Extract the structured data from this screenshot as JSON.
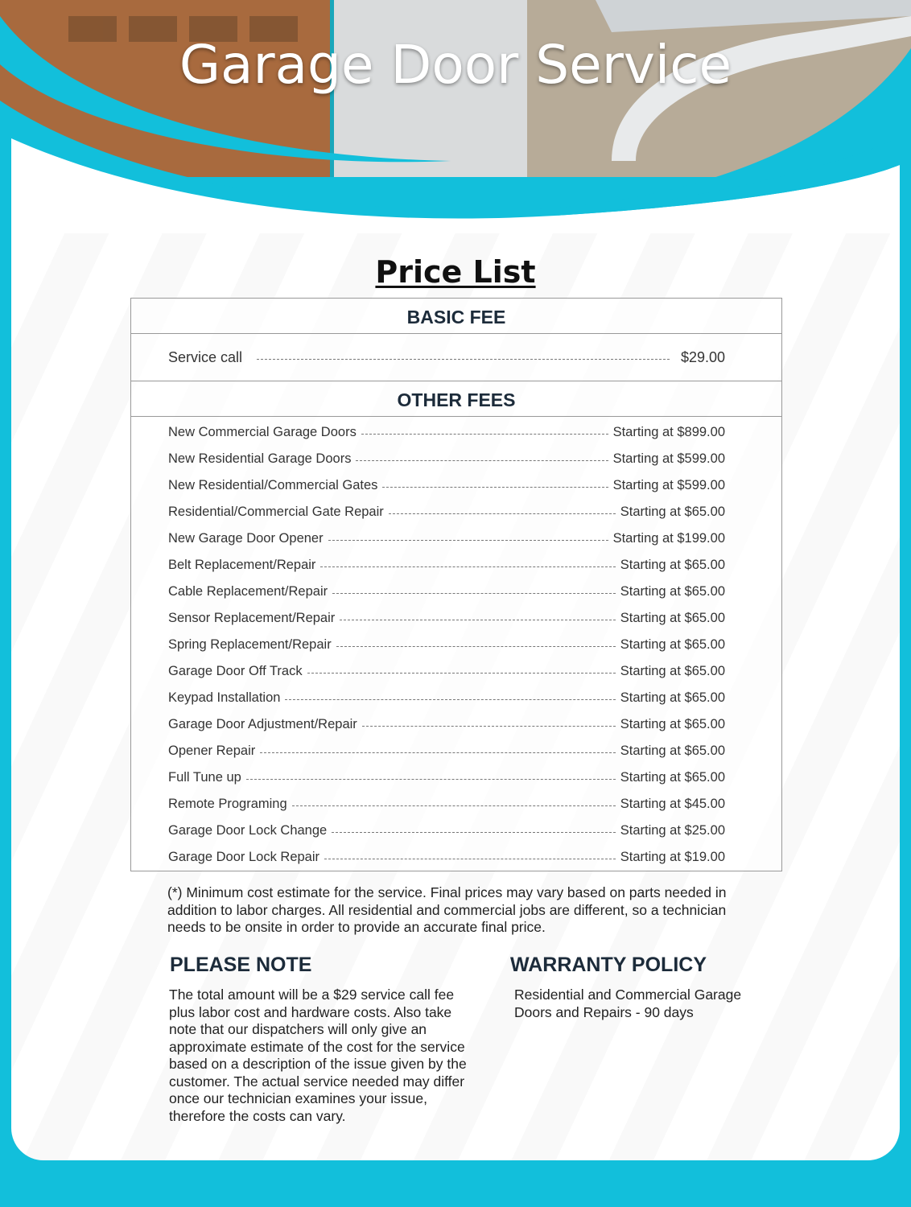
{
  "header": {
    "title": "Garage Door Service"
  },
  "colors": {
    "accent": "#12bfdb",
    "heading": "#1c2b3a"
  },
  "price_list": {
    "title": "Price List",
    "basic_fee": {
      "heading": "BASIC FEE",
      "items": [
        {
          "name": "Service call",
          "price": "$29.00"
        }
      ]
    },
    "other_fees": {
      "heading": "OTHER FEES",
      "items": [
        {
          "name": "New Commercial Garage Doors",
          "price": "Starting at $899.00"
        },
        {
          "name": "New Residential Garage Doors",
          "price": "Starting at $599.00"
        },
        {
          "name": "New Residential/Commercial Gates",
          "price": "Starting at $599.00"
        },
        {
          "name": "Residential/Commercial Gate Repair",
          "price": "Starting at $65.00"
        },
        {
          "name": "New Garage Door Opener",
          "price": "Starting at $199.00"
        },
        {
          "name": "Belt Replacement/Repair",
          "price": "Starting at $65.00"
        },
        {
          "name": "Cable Replacement/Repair",
          "price": "Starting at $65.00"
        },
        {
          "name": "Sensor Replacement/Repair",
          "price": "Starting at $65.00"
        },
        {
          "name": "Spring Replacement/Repair",
          "price": "Starting at $65.00"
        },
        {
          "name": "Garage Door Off Track",
          "price": "Starting at $65.00"
        },
        {
          "name": "Keypad Installation",
          "price": "Starting at $65.00"
        },
        {
          "name": "Garage Door Adjustment/Repair",
          "price": "Starting at $65.00"
        },
        {
          "name": "Opener Repair",
          "price": "Starting at $65.00"
        },
        {
          "name": "Full Tune up",
          "price": "Starting at $65.00"
        },
        {
          "name": "Remote Programing",
          "price": "Starting at $45.00"
        },
        {
          "name": "Garage Door Lock Change",
          "price": "Starting at $25.00"
        },
        {
          "name": "Garage Door Lock Repair",
          "price": "Starting at $19.00"
        }
      ]
    }
  },
  "footnote": "(*) Minimum cost estimate for the service. Final prices may vary based on parts needed in addition to labor charges. All residential and commercial jobs are different, so a technician needs to be onsite in order to provide an accurate final price.",
  "please_note": {
    "heading": "PLEASE NOTE",
    "text": "The total amount will be a $29 service call fee plus labor cost and hardware costs. Also take note that our dispatchers will only give an approximate estimate of the cost for the service based on a description of the issue given by the customer. The actual service needed may differ once our technician examines your issue, therefore the costs can vary."
  },
  "warranty": {
    "heading": "WARRANTY POLICY",
    "text": "Residential and Commercial Garage Doors and Repairs - 90 days"
  }
}
